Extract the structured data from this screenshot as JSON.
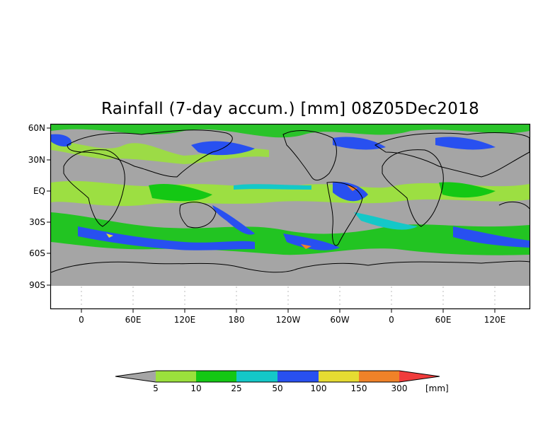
{
  "title": "Rainfall (7-day accum.) [mm] 08Z05Dec2018",
  "lat_labels": [
    "60N",
    "30N",
    "EQ",
    "30S",
    "60S",
    "90S"
  ],
  "lon_labels": [
    "0",
    "60E",
    "120E",
    "180",
    "120W",
    "60W",
    "0",
    "60E",
    "120E"
  ],
  "colorbar": {
    "labels": [
      "5",
      "10",
      "25",
      "50",
      "100",
      "150",
      "300"
    ],
    "unit": "[mm]",
    "colors": [
      "#a5a5a5",
      "#9be13c",
      "#14c814",
      "#14c8c8",
      "#2850f0",
      "#e6dc32",
      "#f08228",
      "#f03c3c"
    ]
  },
  "colors": {
    "land_no_rain": "#a5a5a5",
    "background": "#ffffff",
    "coastline": "#000000"
  }
}
